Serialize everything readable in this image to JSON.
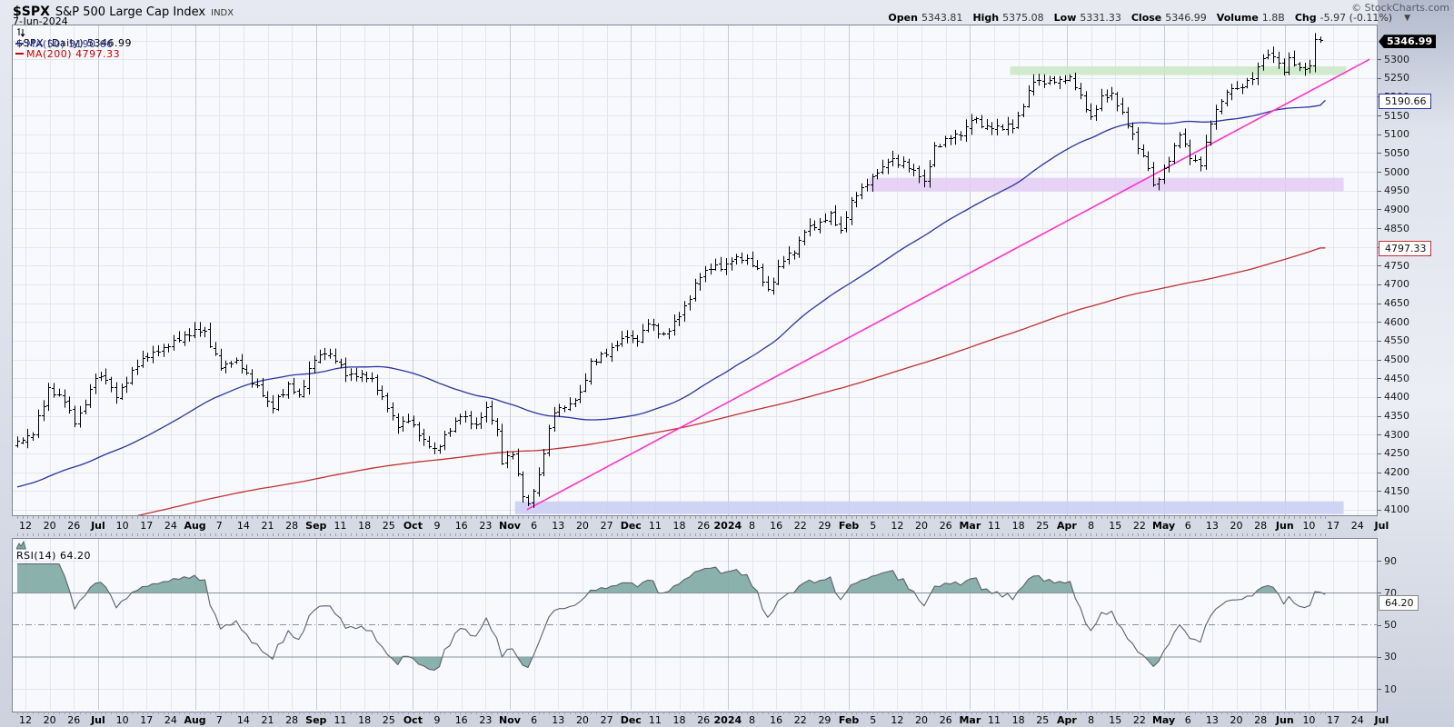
{
  "header": {
    "symbol": "$SPX",
    "name": "S&P 500 Large Cap Index",
    "exchange": "INDX",
    "date": "7-Jun-2024",
    "copyright": "© StockCharts.com",
    "quote": {
      "open_label": "Open",
      "open": "5343.81",
      "high_label": "High",
      "high": "5375.08",
      "low_label": "Low",
      "low": "5331.33",
      "close_label": "Close",
      "close": "5346.99",
      "volume_label": "Volume",
      "volume": "1.8B",
      "chg_label": "Chg",
      "chg": "-5.97 (-0.11%)",
      "dropdown_icon": "▼"
    }
  },
  "legend": {
    "main": "$SPX (Daily) 5346.99",
    "ma50": "MA(50) 5190.66",
    "ma200": "MA(200) 4797.33",
    "rsi": "RSI(14) 64.20"
  },
  "axis_boxes": {
    "last_price": "5346.99",
    "ma50": "5190.66",
    "ma200": "4797.33",
    "rsi": "64.20"
  },
  "colors": {
    "bars": "#000000",
    "ma50": "#2b34a1",
    "ma200": "#c03030",
    "ma200_text": "#cc0000",
    "trendline": "#ff33cc",
    "rsi_line": "#5c6070",
    "rsi_fill": "#7da9a2",
    "grid_light": "#e3e6ef",
    "grid_month": "#c6cbd8",
    "rsi_level": "#8b8f9b"
  },
  "chart_data": {
    "type": "ohlc",
    "title": "$SPX (Daily)",
    "num_bars": 252,
    "ylim": [
      4085,
      5390
    ],
    "price_tick_step": 50,
    "price_ticks_top": 5300,
    "price_ticks_bottom": 4100,
    "rsi_ticks": [
      90,
      70,
      50,
      30,
      10
    ],
    "rsi_overbought": 70,
    "rsi_midline": 50,
    "rsi_oversold": 30,
    "rsi_period": 14,
    "rsi_last": 64.2,
    "last_bar": {
      "open": 5343.81,
      "high": 5375.08,
      "low": 5331.33,
      "close": 5346.99
    },
    "ma50_last": 5190.66,
    "ma200_last": 4797.33,
    "x_labels": [
      [
        "12",
        0
      ],
      [
        "20",
        0
      ],
      [
        "26",
        0
      ],
      [
        "Jul",
        1
      ],
      [
        "10",
        0
      ],
      [
        "17",
        0
      ],
      [
        "24",
        0
      ],
      [
        "Aug",
        1
      ],
      [
        "7",
        0
      ],
      [
        "14",
        0
      ],
      [
        "21",
        0
      ],
      [
        "28",
        0
      ],
      [
        "Sep",
        1
      ],
      [
        "11",
        0
      ],
      [
        "18",
        0
      ],
      [
        "25",
        0
      ],
      [
        "Oct",
        1
      ],
      [
        "9",
        0
      ],
      [
        "16",
        0
      ],
      [
        "23",
        0
      ],
      [
        "Nov",
        1
      ],
      [
        "6",
        0
      ],
      [
        "13",
        0
      ],
      [
        "20",
        0
      ],
      [
        "27",
        0
      ],
      [
        "Dec",
        1
      ],
      [
        "11",
        0
      ],
      [
        "18",
        0
      ],
      [
        "26",
        0
      ],
      [
        "2024",
        1
      ],
      [
        "8",
        0
      ],
      [
        "16",
        0
      ],
      [
        "22",
        0
      ],
      [
        "29",
        0
      ],
      [
        "Feb",
        1
      ],
      [
        "5",
        0
      ],
      [
        "12",
        0
      ],
      [
        "20",
        0
      ],
      [
        "26",
        0
      ],
      [
        "Mar",
        1
      ],
      [
        "11",
        0
      ],
      [
        "18",
        0
      ],
      [
        "25",
        0
      ],
      [
        "Apr",
        1
      ],
      [
        "8",
        0
      ],
      [
        "15",
        0
      ],
      [
        "22",
        0
      ],
      [
        "May",
        1
      ],
      [
        "6",
        0
      ],
      [
        "13",
        0
      ],
      [
        "20",
        0
      ],
      [
        "28",
        0
      ],
      [
        "Jun",
        1
      ],
      [
        "10",
        0
      ],
      [
        "17",
        0
      ],
      [
        "24",
        0
      ],
      [
        "Jul",
        1
      ]
    ],
    "close_anchors": [
      [
        0,
        4284
      ],
      [
        3,
        4300
      ],
      [
        6,
        4426
      ],
      [
        9,
        4388
      ],
      [
        11,
        4329
      ],
      [
        13,
        4381
      ],
      [
        15,
        4450
      ],
      [
        17,
        4446
      ],
      [
        19,
        4399
      ],
      [
        22,
        4472
      ],
      [
        24,
        4505
      ],
      [
        27,
        4522
      ],
      [
        29,
        4536
      ],
      [
        32,
        4567
      ],
      [
        34,
        4582
      ],
      [
        36,
        4577
      ],
      [
        39,
        4478
      ],
      [
        42,
        4500
      ],
      [
        44,
        4464
      ],
      [
        47,
        4404
      ],
      [
        49,
        4370
      ],
      [
        52,
        4436
      ],
      [
        54,
        4406
      ],
      [
        57,
        4498
      ],
      [
        59,
        4516
      ],
      [
        61,
        4497
      ],
      [
        63,
        4457
      ],
      [
        66,
        4462
      ],
      [
        68,
        4450
      ],
      [
        70,
        4402
      ],
      [
        73,
        4320
      ],
      [
        75,
        4337
      ],
      [
        78,
        4288
      ],
      [
        80,
        4263
      ],
      [
        83,
        4309
      ],
      [
        85,
        4350
      ],
      [
        88,
        4328
      ],
      [
        90,
        4373
      ],
      [
        92,
        4314
      ],
      [
        93,
        4224
      ],
      [
        95,
        4247
      ],
      [
        97,
        4137
      ],
      [
        98,
        4117
      ],
      [
        100,
        4194
      ],
      [
        102,
        4318
      ],
      [
        103,
        4358
      ],
      [
        106,
        4384
      ],
      [
        108,
        4415
      ],
      [
        110,
        4496
      ],
      [
        113,
        4514
      ],
      [
        115,
        4538
      ],
      [
        117,
        4559
      ],
      [
        119,
        4550
      ],
      [
        121,
        4595
      ],
      [
        124,
        4569
      ],
      [
        126,
        4604
      ],
      [
        128,
        4644
      ],
      [
        131,
        4719
      ],
      [
        133,
        4741
      ],
      [
        136,
        4755
      ],
      [
        138,
        4775
      ],
      [
        140,
        4770
      ],
      [
        142,
        4743
      ],
      [
        144,
        4689
      ],
      [
        147,
        4764
      ],
      [
        149,
        4784
      ],
      [
        151,
        4840
      ],
      [
        154,
        4868
      ],
      [
        156,
        4891
      ],
      [
        158,
        4846
      ],
      [
        160,
        4925
      ],
      [
        162,
        4959
      ],
      [
        165,
        4998
      ],
      [
        167,
        5027
      ],
      [
        170,
        5030
      ],
      [
        172,
        5006
      ],
      [
        174,
        4976
      ],
      [
        176,
        5070
      ],
      [
        179,
        5089
      ],
      [
        181,
        5096
      ],
      [
        183,
        5137
      ],
      [
        186,
        5124
      ],
      [
        188,
        5124
      ],
      [
        191,
        5117
      ],
      [
        193,
        5175
      ],
      [
        195,
        5241
      ],
      [
        197,
        5234
      ],
      [
        200,
        5248
      ],
      [
        202,
        5254
      ],
      [
        204,
        5206
      ],
      [
        206,
        5147
      ],
      [
        208,
        5204
      ],
      [
        210,
        5210
      ],
      [
        212,
        5160
      ],
      [
        213,
        5123
      ],
      [
        215,
        5062
      ],
      [
        217,
        5011
      ],
      [
        218,
        4967
      ],
      [
        220,
        5010
      ],
      [
        222,
        5070
      ],
      [
        223,
        5100
      ],
      [
        225,
        5036
      ],
      [
        227,
        5018
      ],
      [
        229,
        5128
      ],
      [
        231,
        5188
      ],
      [
        233,
        5222
      ],
      [
        234,
        5223
      ],
      [
        237,
        5246
      ],
      [
        239,
        5303
      ],
      [
        241,
        5308
      ],
      [
        243,
        5267
      ],
      [
        244,
        5305
      ],
      [
        246,
        5278
      ],
      [
        248,
        5283
      ],
      [
        249,
        5354
      ],
      [
        250,
        5352
      ],
      [
        251,
        5347
      ]
    ],
    "pre_anchors": [
      [
        0,
        3790
      ],
      [
        40,
        3900
      ],
      [
        80,
        3960
      ],
      [
        115,
        4050
      ],
      [
        150,
        4070
      ],
      [
        175,
        4140
      ],
      [
        195,
        4160
      ],
      [
        209,
        4250
      ]
    ],
    "trendline": {
      "d1": 97.8,
      "p1": 4100,
      "d2": 259.5,
      "p2": 5300
    },
    "zones": [
      {
        "d1": 95.5,
        "d2": 254.5,
        "p1": 4088,
        "p2": 4122,
        "color": "#c9cef2"
      },
      {
        "d1": 163.5,
        "d2": 254.5,
        "p1": 4948,
        "p2": 4984,
        "color": "#e3cdf3"
      },
      {
        "d1": 190.5,
        "d2": 255.0,
        "p1": 5258,
        "p2": 5281,
        "color": "#c8e9c3"
      }
    ]
  }
}
